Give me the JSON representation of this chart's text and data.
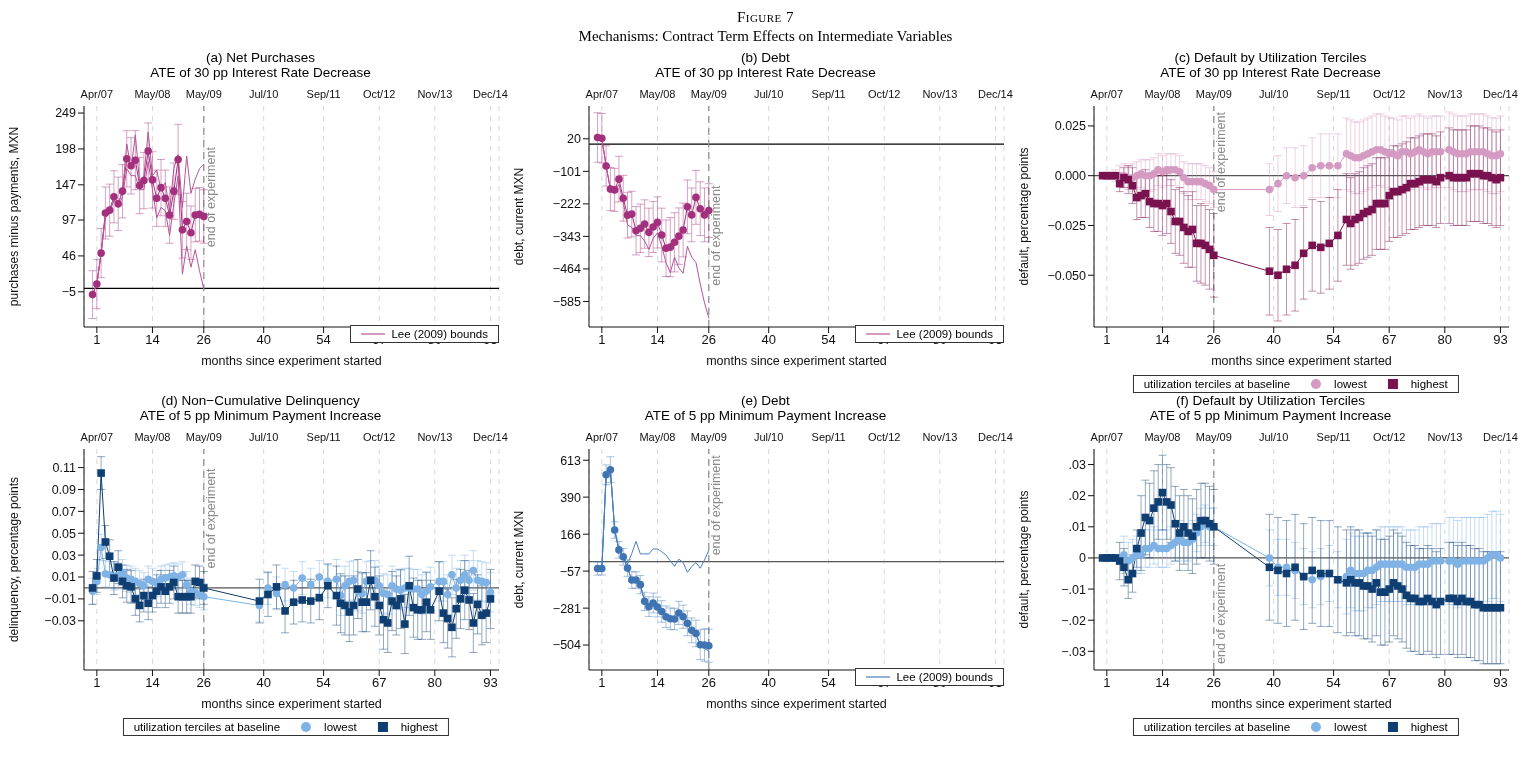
{
  "chart_data": [
    {
      "type": "line",
      "title": "(a) Net Purchases",
      "subtitle": "ATE of 30 pp Interest Rate Decrease",
      "annotations": [
        "Figure 7",
        "Mechanisms: Contract Term Effects on Intermediate Variables"
      ],
      "xlabel": "months since experiment started",
      "ylabel": "purchases minus payments, MXN",
      "xlim": [
        -2,
        95
      ],
      "xticks": [
        1,
        14,
        26,
        40,
        54,
        67,
        80,
        93
      ],
      "x2lim": [
        "2007-01",
        "2015-02"
      ],
      "x2ticks": [
        {
          "value": "2007-04",
          "label": "Apr/07"
        },
        {
          "value": "2008-05",
          "label": "May/08"
        },
        {
          "value": "2009-05",
          "label": "May/09"
        },
        {
          "value": "2010-07",
          "label": "Jul/10"
        },
        {
          "value": "2011-09",
          "label": "Sep/11"
        },
        {
          "value": "2012-10",
          "label": "Oct/12"
        },
        {
          "value": "2013-11",
          "label": "Nov/13"
        },
        {
          "value": "2014-12",
          "label": "Dec/14"
        }
      ],
      "ylim": [
        -55,
        259
      ],
      "yticks": [
        {
          "value": -5,
          "label": "−5"
        },
        46,
        97,
        147,
        198,
        249
      ],
      "grid": "x",
      "legend": "bottom right",
      "x": [
        0,
        1,
        2,
        3,
        4,
        5,
        6,
        7,
        8,
        9,
        10,
        11,
        12,
        13,
        14,
        15,
        16,
        17,
        18,
        19,
        20,
        21,
        22,
        23,
        24,
        25,
        26
      ],
      "series": [
        {
          "color": "#a3307c",
          "marker": "circle",
          "values": [
            -9,
            6,
            50,
            107,
            111,
            130,
            120,
            138,
            184,
            174,
            182,
            146,
            153,
            195,
            154,
            128,
            143,
            128,
            104,
            138,
            183,
            83,
            95,
            79,
            104,
            105,
            102
          ],
          "errors": [
            34,
            35,
            35,
            37,
            37,
            37,
            38,
            38,
            40,
            40,
            42,
            40,
            40,
            40,
            40,
            40,
            40,
            40,
            40,
            40,
            50,
            40,
            40,
            38,
            38,
            38,
            38
          ]
        },
        {
          "name": "Lee (2009) bounds",
          "color": "#b5549a",
          "marker": "none",
          "values": [
            -9,
            6,
            50,
            107,
            111,
            130,
            120,
            138,
            205,
            170,
            218,
            150,
            160,
            222,
            160,
            168,
            140,
            150,
            110,
            170,
            190,
            115,
            188,
            135,
            155,
            170,
            176
          ]
        },
        {
          "color": "#b5549a",
          "marker": "none",
          "values": [
            -9,
            6,
            50,
            100,
            108,
            125,
            115,
            130,
            170,
            160,
            160,
            140,
            140,
            180,
            140,
            100,
            115,
            110,
            75,
            120,
            160,
            20,
            60,
            30,
            55,
            25,
            -1
          ]
        }
      ],
      "ref_lines": [
        {
          "axis": "y",
          "value": 0,
          "color": "#000000"
        },
        {
          "axis": "x",
          "value": 26,
          "label": "end of experiment",
          "color": "#8a8a8a",
          "line_style": "dashed"
        }
      ]
    },
    {
      "type": "line",
      "title": "(b) Debt",
      "subtitle": "ATE of 30 pp Interest Rate Decrease",
      "xlabel": "months since experiment started",
      "ylabel": "debt, current MXN",
      "xlim": [
        -2,
        95
      ],
      "xticks": [
        1,
        14,
        26,
        40,
        54,
        67,
        80,
        93
      ],
      "x2lim": [
        "2007-01",
        "2015-02"
      ],
      "x2ticks": [
        {
          "value": "2007-04",
          "label": "Apr/07"
        },
        {
          "value": "2008-05",
          "label": "May/08"
        },
        {
          "value": "2009-05",
          "label": "May/09"
        },
        {
          "value": "2010-07",
          "label": "Jul/10"
        },
        {
          "value": "2011-09",
          "label": "Sep/11"
        },
        {
          "value": "2012-10",
          "label": "Oct/12"
        },
        {
          "value": "2013-11",
          "label": "Nov/13"
        },
        {
          "value": "2014-12",
          "label": "Dec/14"
        }
      ],
      "ylim": [
        -680,
        142
      ],
      "yticks": [
        {
          "value": -585,
          "label": "−585"
        },
        {
          "value": -464,
          "label": "−464"
        },
        {
          "value": -343,
          "label": "−343"
        },
        {
          "value": -222,
          "label": "−222"
        },
        {
          "value": -101,
          "label": "−101"
        },
        20
      ],
      "grid": "x",
      "legend": "bottom right",
      "x": [
        0,
        1,
        2,
        3,
        4,
        5,
        6,
        7,
        8,
        9,
        10,
        11,
        12,
        13,
        14,
        15,
        16,
        17,
        18,
        19,
        20,
        21,
        22,
        23,
        24,
        25,
        26
      ],
      "series": [
        {
          "color": "#a3307c",
          "marker": "circle",
          "values": [
            25,
            22,
            -81,
            -167,
            -170,
            -130,
            -201,
            -264,
            -260,
            -322,
            -313,
            -297,
            -328,
            -308,
            -291,
            -338,
            -387,
            -383,
            -365,
            -342,
            -319,
            -233,
            -263,
            -198,
            -240,
            -263,
            -247
          ],
          "errors": [
            92,
            92,
            75,
            80,
            80,
            85,
            85,
            85,
            85,
            90,
            90,
            90,
            90,
            95,
            95,
            100,
            105,
            110,
            110,
            105,
            100,
            100,
            100,
            100,
            100,
            100,
            100
          ]
        },
        {
          "name": "Lee (2009) bounds",
          "color": "#b5549a",
          "marker": "none",
          "values": [
            25,
            22,
            -81,
            -167,
            -170,
            -150,
            -215,
            -300,
            -310,
            -340,
            -340,
            -360,
            -392,
            -350,
            -330,
            -380,
            -440,
            -478,
            -420,
            -460,
            -480,
            -380,
            -420,
            -440,
            -520,
            -590,
            -646
          ]
        }
      ],
      "ref_lines": [
        {
          "axis": "y",
          "value": 0,
          "color": "#000000"
        },
        {
          "axis": "x",
          "value": 26,
          "label": "end of experiment",
          "color": "#8a8a8a",
          "line_style": "dashed"
        }
      ]
    },
    {
      "type": "line",
      "title": "(c) Default by Utilization Terciles",
      "subtitle": "ATE of 30 pp Interest Rate Decrease",
      "xlabel": "months since experiment started",
      "ylabel": "default, percentage points",
      "xlim": [
        -2,
        95
      ],
      "xticks": [
        1,
        14,
        26,
        40,
        54,
        67,
        80,
        93
      ],
      "x2lim": [
        "2007-01",
        "2015-02"
      ],
      "x2ticks": [
        {
          "value": "2007-04",
          "label": "Apr/07"
        },
        {
          "value": "2008-05",
          "label": "May/08"
        },
        {
          "value": "2009-05",
          "label": "May/09"
        },
        {
          "value": "2010-07",
          "label": "Jul/10"
        },
        {
          "value": "2011-09",
          "label": "Sep/11"
        },
        {
          "value": "2012-10",
          "label": "Oct/12"
        },
        {
          "value": "2013-11",
          "label": "Nov/13"
        },
        {
          "value": "2014-12",
          "label": "Dec/14"
        }
      ],
      "ylim": [
        -0.076,
        0.035
      ],
      "yticks": [
        {
          "value": -0.05,
          "label": "−0.050"
        },
        {
          "value": -0.025,
          "label": "−0.025"
        },
        {
          "value": 0,
          "label": "0.000"
        },
        {
          "value": 0.025,
          "label": "0.025"
        }
      ],
      "grid": "x",
      "legend": "bottom",
      "legend_title": "utilization terciles at baseline",
      "x": [
        0,
        1,
        2,
        3,
        4,
        5,
        6,
        7,
        8,
        9,
        10,
        11,
        12,
        13,
        14,
        15,
        16,
        17,
        18,
        19,
        20,
        21,
        22,
        23,
        24,
        25,
        26,
        39,
        41,
        43,
        45,
        47,
        49,
        51,
        53,
        55,
        57,
        58,
        59,
        60,
        61,
        62,
        63,
        64,
        65,
        66,
        67,
        68,
        69,
        70,
        71,
        72,
        73,
        74,
        75,
        76,
        77,
        78,
        79,
        81,
        82,
        83,
        84,
        85,
        86,
        87,
        88,
        89,
        90,
        91,
        92,
        93
      ],
      "series": [
        {
          "name": "lowest",
          "color": "#d49ac2",
          "marker": "circle",
          "values": [
            null,
            null,
            0,
            0,
            0,
            0,
            -0.001,
            -0.001,
            0,
            0.001,
            0,
            0,
            0.001,
            0.003,
            0.002,
            0.003,
            0.003,
            0.003,
            0.002,
            -0.001,
            -0.003,
            -0.003,
            -0.003,
            -0.003,
            -0.004,
            -0.005,
            -0.007,
            -0.007,
            -0.004,
            0,
            -0.001,
            0,
            0.004,
            0.005,
            0.005,
            0.005,
            0.011,
            0.01,
            0.009,
            0.009,
            0.01,
            0.011,
            0.012,
            0.013,
            0.013,
            0.012,
            0.011,
            0.011,
            0.01,
            0.012,
            0.012,
            0.011,
            0.012,
            0.013,
            0.012,
            0.011,
            0.012,
            0.012,
            0.012,
            0.013,
            0.012,
            0.011,
            0.011,
            0.011,
            0.012,
            0.012,
            0.012,
            0.012,
            0.011,
            0.01,
            0.01,
            0.011
          ],
          "errors": [
            null,
            null,
            null,
            0.003,
            0.005,
            0.006,
            0.006,
            0.007,
            0.007,
            0.007,
            0.008,
            0.008,
            0.008,
            0.008,
            0.008,
            0.008,
            0.008,
            0.008,
            0.008,
            0.008,
            0.009,
            0.009,
            0.009,
            0.009,
            0.009,
            0.009,
            0.009,
            0.013,
            0.014,
            0.014,
            0.015,
            0.015,
            0.015,
            0.016,
            0.016,
            0.016,
            0.018,
            0.018,
            0.018,
            0.018,
            0.018,
            0.018,
            0.018,
            0.018,
            0.018,
            0.018,
            0.018,
            0.018,
            0.018,
            0.018,
            0.018,
            0.018,
            0.018,
            0.018,
            0.018,
            0.018,
            0.018,
            0.018,
            0.018,
            0.019,
            0.019,
            0.019,
            0.019,
            0.019,
            0.019,
            0.019,
            0.019,
            0.019,
            0.019,
            0.019,
            0.019,
            0.019
          ]
        },
        {
          "name": "highest",
          "color": "#7a1250",
          "marker": "square",
          "values": [
            0,
            0,
            0,
            0,
            -0.004,
            -0.001,
            -0.002,
            -0.005,
            -0.011,
            -0.01,
            -0.009,
            -0.013,
            -0.014,
            -0.014,
            -0.015,
            -0.014,
            -0.018,
            -0.023,
            -0.023,
            -0.026,
            -0.028,
            -0.027,
            -0.034,
            -0.034,
            -0.035,
            -0.037,
            -0.04,
            -0.048,
            -0.05,
            -0.047,
            -0.045,
            -0.039,
            -0.035,
            -0.036,
            -0.034,
            -0.03,
            -0.022,
            -0.024,
            -0.022,
            -0.021,
            -0.019,
            -0.018,
            -0.017,
            -0.014,
            -0.014,
            -0.014,
            -0.01,
            -0.008,
            -0.008,
            -0.007,
            -0.006,
            -0.004,
            -0.004,
            -0.003,
            -0.002,
            -0.002,
            -0.002,
            -0.003,
            -0.001,
            0,
            -0.001,
            -0.001,
            -0.001,
            -0.001,
            0.001,
            0.001,
            0.001,
            0,
            0,
            -0.001,
            -0.002,
            -0.001
          ],
          "errors": [
            null,
            null,
            null,
            null,
            0.004,
            0.005,
            0.007,
            0.009,
            0.011,
            0.011,
            0.012,
            0.013,
            0.014,
            0.014,
            0.015,
            0.015,
            0.016,
            0.016,
            0.017,
            0.018,
            0.018,
            0.019,
            0.019,
            0.02,
            0.02,
            0.02,
            0.021,
            0.022,
            0.023,
            0.023,
            0.023,
            0.023,
            0.023,
            0.023,
            0.023,
            0.023,
            0.023,
            0.023,
            0.023,
            0.023,
            0.023,
            0.023,
            0.023,
            0.023,
            0.023,
            0.023,
            0.023,
            0.023,
            0.023,
            0.023,
            0.023,
            0.023,
            0.023,
            0.023,
            0.023,
            0.023,
            0.023,
            0.023,
            0.023,
            0.024,
            0.024,
            0.024,
            0.024,
            0.024,
            0.024,
            0.024,
            0.024,
            0.024,
            0.024,
            0.024,
            0.024,
            0.024
          ]
        }
      ],
      "ref_lines": [
        {
          "axis": "y",
          "value": 0,
          "color": "#555555"
        },
        {
          "axis": "x",
          "value": 26,
          "label": "end of experiment",
          "color": "#8a8a8a",
          "line_style": "dashed"
        }
      ]
    },
    {
      "type": "line",
      "title": "(d) Non−Cumulative Delinquency",
      "subtitle": "ATE of 5 pp Minimum Payment Increase",
      "xlabel": "months since experiment started",
      "ylabel": "delinquency, percentage points",
      "xlim": [
        -2,
        95
      ],
      "xticks": [
        1,
        14,
        26,
        40,
        54,
        67,
        80,
        93
      ],
      "x2lim": [
        "2007-01",
        "2015-02"
      ],
      "x2ticks": [
        {
          "value": "2007-04",
          "label": "Apr/07"
        },
        {
          "value": "2008-05",
          "label": "May/08"
        },
        {
          "value": "2009-05",
          "label": "May/09"
        },
        {
          "value": "2010-07",
          "label": "Jul/10"
        },
        {
          "value": "2011-09",
          "label": "Sep/11"
        },
        {
          "value": "2012-10",
          "label": "Oct/12"
        },
        {
          "value": "2013-11",
          "label": "Nov/13"
        },
        {
          "value": "2014-12",
          "label": "Dec/14"
        }
      ],
      "ylim": [
        -0.075,
        0.127
      ],
      "yticks": [
        {
          "value": -0.03,
          "label": "−0.03"
        },
        {
          "value": -0.01,
          "label": "−0.01"
        },
        0.01,
        0.03,
        0.05,
        0.07,
        0.09,
        0.11
      ],
      "grid": "x",
      "legend": "bottom",
      "legend_title": "utilization terciles at baseline",
      "x": [
        0,
        1,
        2,
        3,
        4,
        5,
        6,
        7,
        8,
        9,
        10,
        11,
        12,
        13,
        14,
        15,
        16,
        17,
        18,
        19,
        20,
        21,
        22,
        23,
        24,
        25,
        26,
        39,
        41,
        43,
        45,
        47,
        49,
        51,
        53,
        55,
        57,
        58,
        59,
        60,
        61,
        62,
        63,
        64,
        65,
        66,
        67,
        68,
        69,
        70,
        71,
        72,
        73,
        74,
        75,
        76,
        77,
        78,
        79,
        81,
        82,
        83,
        84,
        85,
        86,
        87,
        88,
        89,
        90,
        91,
        92,
        93
      ],
      "series": [
        {
          "name": "lowest",
          "color": "#7fb2e5",
          "marker": "circle",
          "values": [
            -0.003,
            0.006,
            0.037,
            0.013,
            0.012,
            0.01,
            0.011,
            0.014,
            0.009,
            0.008,
            0.006,
            0.004,
            0.002,
            0.008,
            0.006,
            0.004,
            0.008,
            0.009,
            0.01,
            0.011,
            0.01,
            0.012,
            0.003,
            -0.003,
            -0.004,
            -0.006,
            -0.008,
            -0.016,
            0,
            -0.005,
            0.003,
            0,
            0.009,
            0.003,
            0.01,
            0.006,
            0.008,
            -0.007,
            0.002,
            0.006,
            0.007,
            -0.003,
            -0.005,
            0.006,
            0.007,
            0.007,
            0.002,
            -0.005,
            -0.006,
            0.002,
            -0.001,
            -0.002,
            0,
            0,
            -0.001,
            -0.001,
            -0.006,
            -0.003,
            0.001,
            0.006,
            0.006,
            -0.006,
            0.012,
            0,
            0.007,
            0.012,
            0.007,
            0.016,
            0.007,
            0.006,
            0.005,
            -0.004
          ],
          "errors": [
            0.012,
            0.012,
            0.012,
            0.012,
            0.012,
            0.012,
            0.012,
            0.012,
            0.012,
            0.012,
            0.012,
            0.012,
            0.012,
            0.012,
            0.012,
            0.012,
            0.012,
            0.012,
            0.012,
            0.012,
            0.012,
            0.012,
            0.012,
            0.012,
            0.012,
            0.012,
            0.012,
            0.015,
            0.015,
            0.015,
            0.015,
            0.015,
            0.015,
            0.015,
            0.015,
            0.015,
            0.018,
            0.018,
            0.018,
            0.018,
            0.018,
            0.018,
            0.018,
            0.018,
            0.018,
            0.018,
            0.018,
            0.018,
            0.018,
            0.018,
            0.018,
            0.018,
            0.018,
            0.018,
            0.018,
            0.018,
            0.018,
            0.018,
            0.018,
            0.018,
            0.018,
            0.018,
            0.018,
            0.018,
            0.018,
            0.018,
            0.018,
            0.018,
            0.018,
            0.018,
            0.018,
            0.018
          ]
        },
        {
          "name": "highest",
          "color": "#0f3e72",
          "marker": "square",
          "values": [
            0,
            0.011,
            0.105,
            0.042,
            0.029,
            0.009,
            0.019,
            0.006,
            0.002,
            0.001,
            -0.01,
            -0.016,
            -0.007,
            -0.014,
            -0.007,
            -0.003,
            0.001,
            -0.003,
            0.001,
            0.005,
            -0.008,
            -0.008,
            -0.008,
            -0.008,
            0.006,
            0.005,
            0,
            -0.012,
            -0.006,
            0.001,
            -0.021,
            -0.013,
            -0.011,
            -0.012,
            -0.009,
            0.002,
            -0.007,
            -0.014,
            -0.016,
            -0.022,
            -0.016,
            -0.001,
            -0.013,
            -0.013,
            0.007,
            -0.008,
            -0.016,
            -0.029,
            -0.032,
            -0.012,
            -0.016,
            -0.01,
            -0.033,
            0.002,
            -0.018,
            -0.02,
            -0.02,
            -0.013,
            -0.02,
            -0.003,
            -0.023,
            -0.028,
            -0.036,
            -0.019,
            -0.01,
            -0.002,
            -0.011,
            -0.032,
            -0.015,
            -0.025,
            -0.023,
            -0.01
          ],
          "errors": [
            0.015,
            0.015,
            0.015,
            0.015,
            0.015,
            0.015,
            0.015,
            0.015,
            0.015,
            0.015,
            0.015,
            0.015,
            0.015,
            0.015,
            0.015,
            0.015,
            0.015,
            0.015,
            0.015,
            0.015,
            0.015,
            0.015,
            0.015,
            0.015,
            0.015,
            0.015,
            0.015,
            0.02,
            0.02,
            0.02,
            0.02,
            0.02,
            0.02,
            0.02,
            0.02,
            0.02,
            0.027,
            0.027,
            0.027,
            0.027,
            0.027,
            0.027,
            0.027,
            0.027,
            0.027,
            0.027,
            0.027,
            0.027,
            0.027,
            0.027,
            0.027,
            0.027,
            0.027,
            0.027,
            0.027,
            0.027,
            0.027,
            0.027,
            0.027,
            0.027,
            0.027,
            0.027,
            0.027,
            0.027,
            0.027,
            0.027,
            0.027,
            0.027,
            0.027,
            0.027,
            0.027,
            0.027
          ]
        }
      ],
      "ref_lines": [
        {
          "axis": "y",
          "value": 0,
          "color": "#555555"
        },
        {
          "axis": "x",
          "value": 26,
          "label": "end of experiment",
          "color": "#8a8a8a",
          "line_style": "dashed"
        }
      ]
    },
    {
      "type": "line",
      "title": "(e) Debt",
      "subtitle": "ATE of 5 pp Minimum Payment Increase",
      "xlabel": "months since experiment started",
      "ylabel": "debt, current MXN",
      "xlim": [
        -2,
        95
      ],
      "xticks": [
        1,
        14,
        26,
        40,
        54,
        67,
        80,
        93
      ],
      "x2lim": [
        "2007-01",
        "2015-02"
      ],
      "x2ticks": [
        {
          "value": "2007-04",
          "label": "Apr/07"
        },
        {
          "value": "2008-05",
          "label": "May/08"
        },
        {
          "value": "2009-05",
          "label": "May/09"
        },
        {
          "value": "2010-07",
          "label": "Jul/10"
        },
        {
          "value": "2011-09",
          "label": "Sep/11"
        },
        {
          "value": "2012-10",
          "label": "Oct/12"
        },
        {
          "value": "2013-11",
          "label": "Nov/13"
        },
        {
          "value": "2014-12",
          "label": "Dec/14"
        }
      ],
      "ylim": [
        -655,
        681
      ],
      "yticks": [
        {
          "value": -504,
          "label": "−504"
        },
        {
          "value": -281,
          "label": "−281"
        },
        {
          "value": -57,
          "label": "−57"
        },
        166,
        390,
        613
      ],
      "grid": "x",
      "legend": "bottom right",
      "x": [
        0,
        1,
        2,
        3,
        4,
        5,
        6,
        7,
        8,
        9,
        10,
        11,
        12,
        13,
        14,
        15,
        16,
        17,
        18,
        19,
        20,
        21,
        22,
        23,
        24,
        25,
        26
      ],
      "series": [
        {
          "color": "#3f74b3",
          "marker": "circle",
          "values": [
            -41,
            -41,
            525,
            556,
            191,
            71,
            29,
            -39,
            -111,
            -111,
            -139,
            -240,
            -272,
            -250,
            -274,
            -301,
            -333,
            -345,
            -347,
            -310,
            -333,
            -373,
            -415,
            -434,
            -502,
            -504,
            -508
          ],
          "errors": [
            40,
            40,
            60,
            78,
            50,
            50,
            50,
            50,
            50,
            50,
            55,
            55,
            60,
            60,
            60,
            65,
            65,
            65,
            65,
            70,
            70,
            75,
            75,
            80,
            90,
            98,
            100
          ]
        },
        {
          "name": "Lee (2009) bounds",
          "color": "#4a7fc0",
          "marker": "none",
          "values": [
            -41,
            -41,
            525,
            556,
            191,
            71,
            29,
            -15,
            50,
            123,
            47,
            47,
            47,
            77,
            77,
            60,
            40,
            5,
            -28,
            15,
            -5,
            -65,
            -30,
            -5,
            -40,
            10,
            69
          ]
        },
        {
          "color": "#4a7fc0",
          "marker": "none",
          "values": [
            -41,
            -41,
            525,
            556,
            191,
            71,
            29,
            -39,
            -111,
            -111,
            -139,
            -240,
            -272,
            -250,
            -274,
            -301,
            -333,
            -345,
            -347,
            -310,
            -333,
            -373,
            -415,
            -434,
            -510,
            -525,
            -540
          ]
        }
      ],
      "ref_lines": [
        {
          "axis": "y",
          "value": 0,
          "color": "#555555"
        },
        {
          "axis": "x",
          "value": 26,
          "label": "end of experiment",
          "color": "#8a8a8a",
          "line_style": "dashed"
        }
      ]
    },
    {
      "type": "line",
      "title": "(f) Default by Utilization Terciles",
      "subtitle": "ATE of 5 pp Minimum Payment Increase",
      "xlabel": "months since experiment started",
      "ylabel": "default, percentage points",
      "xlim": [
        -2,
        95
      ],
      "xticks": [
        1,
        14,
        26,
        40,
        54,
        67,
        80,
        93
      ],
      "x2lim": [
        "2007-01",
        "2015-02"
      ],
      "x2ticks": [
        {
          "value": "2007-04",
          "label": "Apr/07"
        },
        {
          "value": "2008-05",
          "label": "May/08"
        },
        {
          "value": "2009-05",
          "label": "May/09"
        },
        {
          "value": "2010-07",
          "label": "Jul/10"
        },
        {
          "value": "2011-09",
          "label": "Sep/11"
        },
        {
          "value": "2012-10",
          "label": "Oct/12"
        },
        {
          "value": "2013-11",
          "label": "Nov/13"
        },
        {
          "value": "2014-12",
          "label": "Dec/14"
        }
      ],
      "ylim": [
        -0.036,
        0.035
      ],
      "yticks": [
        {
          "value": -0.03,
          "label": "−.03"
        },
        {
          "value": -0.02,
          "label": "−.02"
        },
        {
          "value": -0.01,
          "label": "−.01"
        },
        0,
        {
          "value": 0.01,
          "label": ".01"
        },
        {
          "value": 0.02,
          "label": ".02"
        },
        {
          "value": 0.03,
          "label": ".03"
        }
      ],
      "grid": "x",
      "legend": "bottom",
      "legend_title": "utilization terciles at baseline",
      "x": [
        0,
        1,
        2,
        3,
        4,
        5,
        6,
        7,
        8,
        9,
        10,
        11,
        12,
        13,
        14,
        15,
        16,
        17,
        18,
        19,
        20,
        21,
        22,
        23,
        24,
        25,
        26,
        39,
        41,
        43,
        45,
        47,
        49,
        51,
        53,
        55,
        57,
        58,
        59,
        60,
        61,
        62,
        63,
        64,
        65,
        66,
        67,
        68,
        69,
        70,
        71,
        72,
        73,
        74,
        75,
        76,
        77,
        78,
        79,
        81,
        82,
        83,
        84,
        85,
        86,
        87,
        88,
        89,
        90,
        91,
        92,
        93
      ],
      "series": [
        {
          "name": "lowest",
          "color": "#7fb2e5",
          "marker": "circle",
          "values": [
            null,
            null,
            0,
            0,
            0,
            0.001,
            -0.001,
            0,
            0.001,
            0.001,
            0.003,
            0.003,
            0.004,
            0.003,
            0.003,
            0.003,
            0.004,
            0.005,
            0.006,
            0.005,
            0.005,
            0.006,
            0.008,
            0.01,
            0.011,
            0.01,
            0.01,
            0,
            -0.003,
            -0.003,
            -0.004,
            -0.006,
            -0.007,
            -0.006,
            -0.005,
            -0.007,
            -0.006,
            -0.004,
            -0.005,
            -0.005,
            -0.005,
            -0.004,
            -0.004,
            -0.003,
            -0.002,
            -0.002,
            -0.002,
            -0.002,
            -0.002,
            -0.002,
            -0.003,
            -0.003,
            -0.003,
            -0.002,
            -0.002,
            -0.002,
            -0.001,
            -0.001,
            -0.001,
            -0.001,
            -0.001,
            -0.002,
            -0.001,
            -0.001,
            -0.001,
            -0.001,
            -0.001,
            -0.001,
            0,
            0.001,
            0.001,
            0
          ],
          "errors": [
            null,
            null,
            null,
            null,
            null,
            0.006,
            0.006,
            0.006,
            0.006,
            0.006,
            0.006,
            0.006,
            0.006,
            0.006,
            0.006,
            0.006,
            0.006,
            0.006,
            0.006,
            0.006,
            0.006,
            0.006,
            0.006,
            0.006,
            0.006,
            0.006,
            0.006,
            0.009,
            0.009,
            0.009,
            0.009,
            0.009,
            0.009,
            0.009,
            0.009,
            0.009,
            0.012,
            0.012,
            0.012,
            0.012,
            0.012,
            0.012,
            0.012,
            0.012,
            0.012,
            0.012,
            0.012,
            0.012,
            0.012,
            0.012,
            0.012,
            0.012,
            0.012,
            0.012,
            0.012,
            0.012,
            0.012,
            0.012,
            0.012,
            0.014,
            0.014,
            0.014,
            0.014,
            0.014,
            0.014,
            0.014,
            0.014,
            0.014,
            0.014,
            0.014,
            0.014,
            0.014
          ]
        },
        {
          "name": "highest",
          "color": "#0f3e72",
          "marker": "square",
          "values": [
            0,
            0,
            0,
            0,
            -0.001,
            -0.003,
            -0.007,
            -0.005,
            0.003,
            0.008,
            0.013,
            0.012,
            0.016,
            0.018,
            0.021,
            0.018,
            0.017,
            0.011,
            0.008,
            0.01,
            0.008,
            0.007,
            0.01,
            0.012,
            0.012,
            0.011,
            0.01,
            -0.003,
            -0.004,
            -0.005,
            -0.003,
            -0.006,
            -0.004,
            -0.005,
            -0.005,
            -0.007,
            -0.008,
            -0.007,
            -0.008,
            -0.008,
            -0.009,
            -0.009,
            -0.01,
            -0.008,
            -0.011,
            -0.011,
            -0.01,
            -0.008,
            -0.009,
            -0.01,
            -0.012,
            -0.013,
            -0.013,
            -0.014,
            -0.014,
            -0.013,
            -0.014,
            -0.015,
            -0.014,
            -0.013,
            -0.013,
            -0.014,
            -0.013,
            -0.014,
            -0.014,
            -0.015,
            -0.015,
            -0.016,
            -0.016,
            -0.016,
            -0.016,
            -0.016
          ],
          "errors": [
            null,
            null,
            null,
            null,
            0.006,
            0.006,
            0.006,
            0.006,
            0.006,
            0.012,
            0.012,
            0.012,
            0.012,
            0.012,
            0.012,
            0.012,
            0.012,
            0.012,
            0.012,
            0.012,
            0.012,
            0.012,
            0.012,
            0.012,
            0.012,
            0.012,
            0.012,
            0.017,
            0.017,
            0.017,
            0.017,
            0.017,
            0.017,
            0.017,
            0.017,
            0.017,
            0.017,
            0.017,
            0.017,
            0.017,
            0.017,
            0.017,
            0.017,
            0.017,
            0.017,
            0.017,
            0.017,
            0.017,
            0.017,
            0.017,
            0.017,
            0.017,
            0.017,
            0.017,
            0.017,
            0.017,
            0.017,
            0.017,
            0.017,
            0.018,
            0.018,
            0.018,
            0.018,
            0.018,
            0.018,
            0.018,
            0.018,
            0.018,
            0.018,
            0.018,
            0.018,
            0.018
          ]
        }
      ],
      "ref_lines": [
        {
          "axis": "y",
          "value": 0,
          "color": "#555555"
        },
        {
          "axis": "x",
          "value": 26,
          "label": "end of experiment",
          "color": "#8a8a8a",
          "line_style": "dashed"
        }
      ]
    }
  ]
}
